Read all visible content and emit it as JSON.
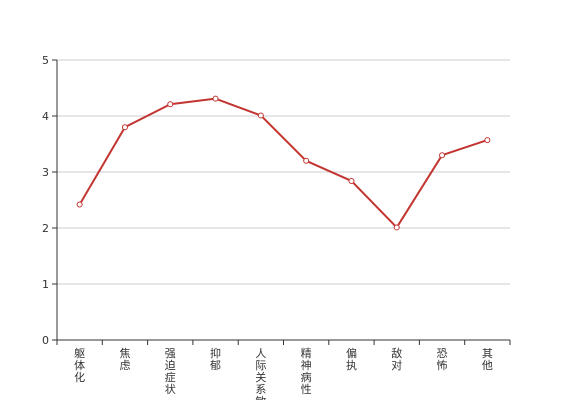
{
  "chart_data": {
    "type": "line",
    "categories": [
      "躯体化",
      "焦虑",
      "强迫症状",
      "抑郁",
      "人际关系敏感",
      "精神病性",
      "偏执",
      "敌对",
      "恐怖",
      "其他"
    ],
    "series": [
      {
        "values": [
          2.42,
          3.8,
          4.21,
          4.31,
          4.01,
          3.2,
          2.84,
          2.01,
          3.3,
          3.57
        ],
        "color": "#c23531"
      }
    ],
    "yticks": [
      "0",
      "1",
      "2",
      "3",
      "4",
      "5"
    ],
    "ylim": [
      0,
      5
    ],
    "grid": true,
    "legend": "none",
    "colors": {
      "line": "#c23531",
      "axis": "#333333",
      "grid": "#cccccc",
      "marker_fill": "#ffffff"
    }
  }
}
